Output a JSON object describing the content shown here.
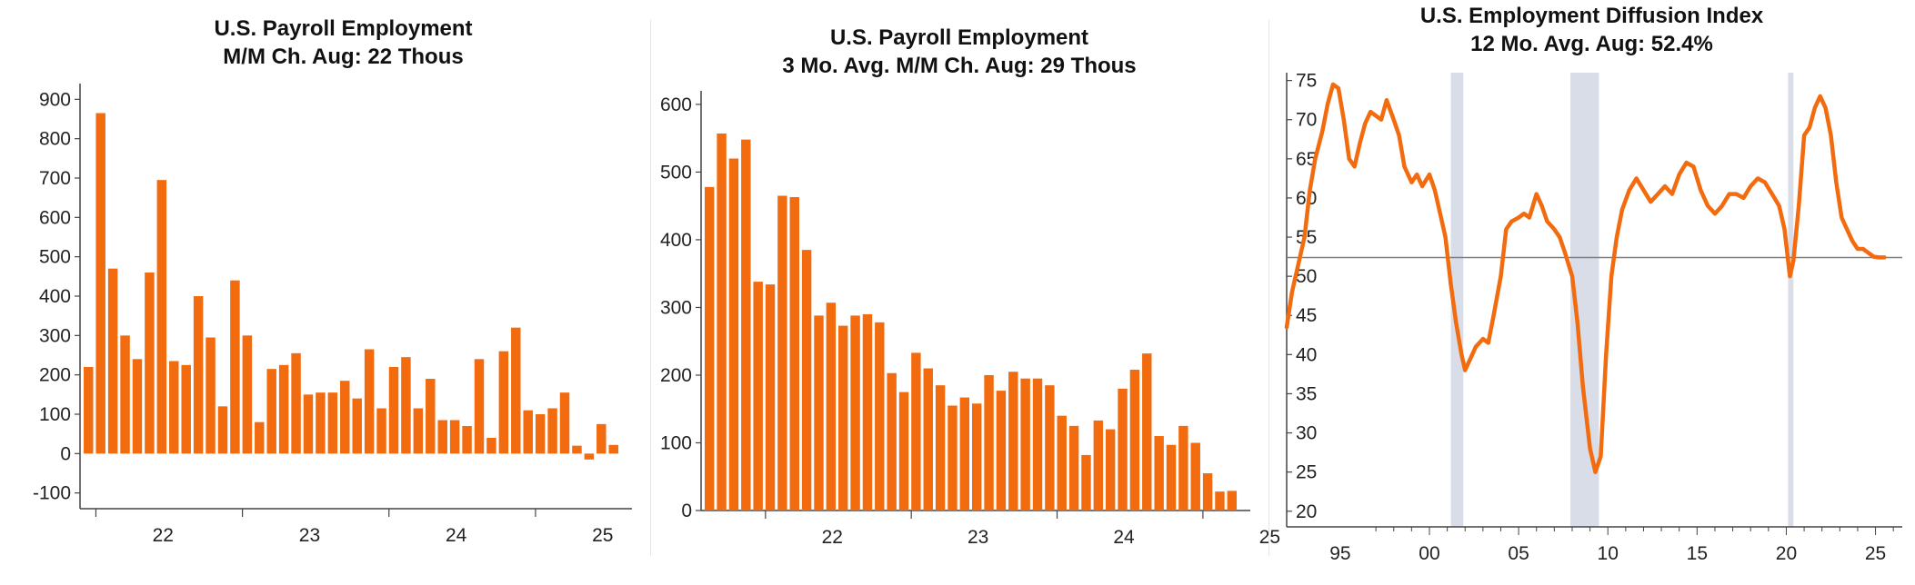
{
  "colors": {
    "bar": "#f26b0f",
    "line": "#f26b0f",
    "axis": "#444444",
    "recession": "#d8dde8",
    "refline": "#7f7f7f"
  },
  "chart_data": [
    {
      "type": "bar",
      "title": "U.S. Payroll Employment",
      "subtitle": "M/M Ch.   Aug: 22 Thous",
      "ylim": [
        -140,
        940
      ],
      "yticks": [
        -100,
        0,
        100,
        200,
        300,
        400,
        500,
        600,
        700,
        800,
        900
      ],
      "x_ticks": [
        "22",
        "23",
        "24",
        "25"
      ],
      "x_tick_index": [
        1,
        13,
        25,
        37
      ],
      "grid": false,
      "values": [
        220,
        865,
        470,
        300,
        240,
        460,
        695,
        235,
        225,
        400,
        295,
        120,
        440,
        300,
        80,
        215,
        225,
        255,
        150,
        155,
        155,
        185,
        140,
        265,
        115,
        220,
        245,
        115,
        190,
        85,
        85,
        70,
        240,
        40,
        260,
        320,
        110,
        100,
        115,
        155,
        20,
        -15,
        75,
        22
      ]
    },
    {
      "type": "bar",
      "title": "U.S. Payroll Employment",
      "subtitle": "3 Mo. Avg. M/M Ch.    Aug: 29 Thous",
      "ylim": [
        0,
        620
      ],
      "yticks": [
        0,
        100,
        200,
        300,
        400,
        500,
        600
      ],
      "x_ticks": [
        "22",
        "23",
        "24",
        "25"
      ],
      "x_tick_index": [
        5,
        17,
        29,
        41
      ],
      "grid": false,
      "values": [
        478,
        557,
        520,
        548,
        338,
        334,
        465,
        463,
        385,
        288,
        307,
        273,
        288,
        290,
        278,
        203,
        175,
        233,
        210,
        185,
        155,
        167,
        158,
        200,
        177,
        205,
        195,
        195,
        185,
        140,
        125,
        82,
        133,
        120,
        180,
        208,
        232,
        110,
        97,
        125,
        100,
        55,
        28,
        29
      ]
    },
    {
      "type": "line",
      "title": "U.S. Employment Diffusion Index",
      "subtitle": "12 Mo. Avg.    Aug: 52.4%",
      "xlim": [
        1992,
        2026.5
      ],
      "ylim": [
        18,
        76
      ],
      "yticks": [
        20,
        25,
        30,
        35,
        40,
        45,
        50,
        55,
        60,
        65,
        70,
        75
      ],
      "x_ticks": [
        "95",
        "00",
        "05",
        "10",
        "15",
        "20",
        "25"
      ],
      "x_tick_years": [
        1995,
        2000,
        2005,
        2010,
        2015,
        2020,
        2025
      ],
      "reference_line": 52.4,
      "recessions": [
        [
          2001.2,
          2001.9
        ],
        [
          2007.9,
          2009.5
        ],
        [
          2020.1,
          2020.4
        ]
      ],
      "grid": false,
      "series": [
        {
          "x": [
            1992.0,
            1992.3,
            1992.6,
            1993.0,
            1993.3,
            1993.6,
            1994.0,
            1994.3,
            1994.6,
            1994.9,
            1995.2,
            1995.5,
            1995.8,
            1996.1,
            1996.4,
            1996.7,
            1997.0,
            1997.3,
            1997.6,
            1998.0,
            1998.3,
            1998.6,
            1999.0,
            1999.3,
            1999.6,
            2000.0,
            2000.3,
            2000.6,
            2000.9,
            2001.2,
            2001.5,
            2001.8,
            2002.0,
            2002.3,
            2002.6,
            2003.0,
            2003.3,
            2003.6,
            2004.0,
            2004.3,
            2004.6,
            2005.0,
            2005.3,
            2005.6,
            2006.0,
            2006.3,
            2006.6,
            2007.0,
            2007.3,
            2007.6,
            2008.0,
            2008.3,
            2008.6,
            2009.0,
            2009.3,
            2009.6,
            2009.9,
            2010.2,
            2010.5,
            2010.8,
            2011.2,
            2011.6,
            2012.0,
            2012.4,
            2012.8,
            2013.2,
            2013.6,
            2014.0,
            2014.4,
            2014.8,
            2015.2,
            2015.6,
            2016.0,
            2016.4,
            2016.8,
            2017.2,
            2017.6,
            2018.0,
            2018.4,
            2018.8,
            2019.2,
            2019.6,
            2019.9,
            2020.2,
            2020.4,
            2020.7,
            2021.0,
            2021.3,
            2021.6,
            2021.9,
            2022.2,
            2022.5,
            2022.8,
            2023.1,
            2023.4,
            2023.7,
            2024.0,
            2024.3,
            2024.6,
            2024.9,
            2025.2,
            2025.5
          ],
          "y": [
            43.5,
            48,
            51,
            55,
            61,
            65,
            68.5,
            72,
            74.5,
            74,
            70,
            65,
            64,
            67,
            69.5,
            71,
            70.5,
            70,
            72.5,
            70,
            68,
            64,
            62,
            63,
            61.5,
            63,
            61,
            58,
            55,
            49,
            44,
            40,
            38,
            39.5,
            41,
            42,
            41.5,
            45,
            50,
            56,
            57,
            57.5,
            58,
            57.5,
            60.5,
            59,
            57,
            56,
            55,
            53,
            50,
            44,
            36,
            28,
            25,
            27,
            40,
            50,
            55,
            58.5,
            61,
            62.5,
            61,
            59.5,
            60.5,
            61.5,
            60.5,
            63,
            64.5,
            64,
            61,
            59,
            58,
            59,
            60.5,
            60.5,
            60,
            61.5,
            62.5,
            62,
            60.5,
            59,
            56,
            50,
            52,
            59,
            68,
            69,
            71.5,
            73,
            71.5,
            68,
            62,
            57.5,
            56,
            54.5,
            53.5,
            53.5,
            53,
            52.5,
            52.4,
            52.4
          ]
        }
      ]
    }
  ]
}
